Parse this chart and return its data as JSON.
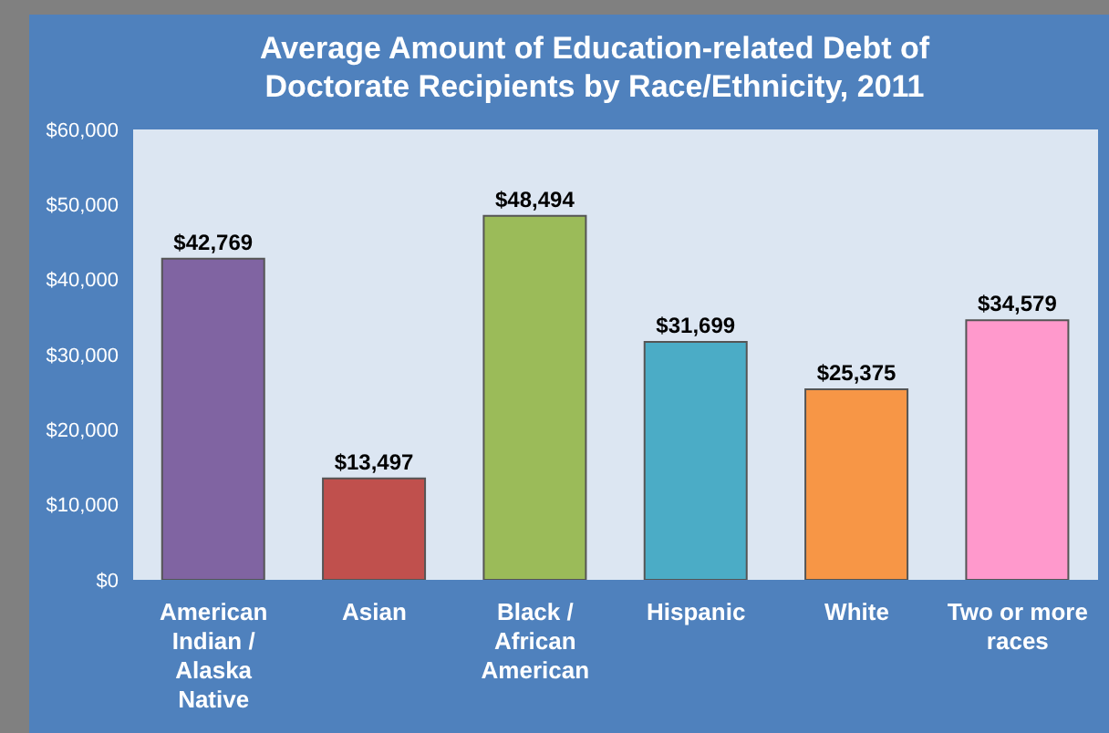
{
  "chart_data": {
    "type": "bar",
    "title": "Average Amount of Education-related Debt of Doctorate Recipients by Race/Ethnicity, 2011",
    "categories": [
      "American Indian / Alaska Native",
      "Asian",
      "Black / African American",
      "Hispanic",
      "White",
      "Two or more races"
    ],
    "values": [
      42769,
      13497,
      48494,
      31699,
      25375,
      34579
    ],
    "value_labels": [
      "$42,769",
      "$13,497",
      "$48,494",
      "$31,699",
      "$25,375",
      "$34,579"
    ],
    "colors": [
      "#8064a2",
      "#c0504d",
      "#9bbb59",
      "#4bacc6",
      "#f79646",
      "#ff99cc"
    ],
    "ylim": [
      0,
      60000
    ],
    "yticks": [
      {
        "value": 0,
        "label": "$0"
      },
      {
        "value": 10000,
        "label": "$10,000"
      },
      {
        "value": 20000,
        "label": "$20,000"
      },
      {
        "value": 30000,
        "label": "$30,000"
      },
      {
        "value": 40000,
        "label": "$40,000"
      },
      {
        "value": 50000,
        "label": "$50,000"
      },
      {
        "value": 60000,
        "label": "$60,000"
      }
    ],
    "grid": false
  }
}
